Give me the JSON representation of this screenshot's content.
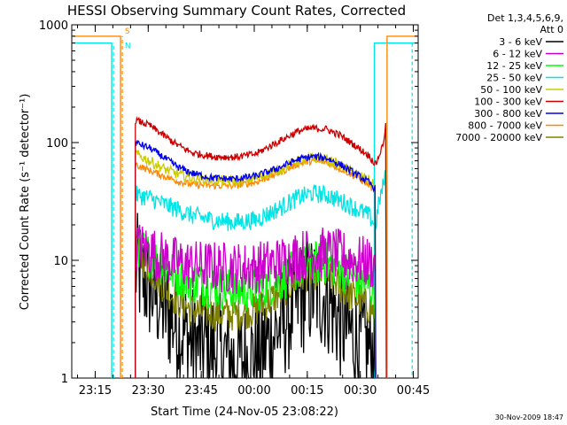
{
  "chart_data": {
    "type": "line",
    "title": "HESSI Observing Summary Count Rates, Corrected",
    "xlabel": "Start Time (24-Nov-05 23:08:22)",
    "ylabel": "Corrected Count Rate (s⁻¹ detector⁻¹)",
    "y_scale": "log",
    "ylim": [
      1,
      1000
    ],
    "y_ticks": [
      {
        "value": 1,
        "label": "1"
      },
      {
        "value": 10,
        "label": "10"
      },
      {
        "value": 100,
        "label": "100"
      },
      {
        "value": 1000,
        "label": "1000"
      }
    ],
    "x_unit": "minutes after 23:08:22",
    "xlim": [
      0,
      98
    ],
    "x_ticks": [
      {
        "value": 6.63,
        "label": "23:15"
      },
      {
        "value": 21.63,
        "label": "23:30"
      },
      {
        "value": 36.63,
        "label": "23:45"
      },
      {
        "value": 51.63,
        "label": "00:00"
      },
      {
        "value": 66.63,
        "label": "00:15"
      },
      {
        "value": 81.63,
        "label": "00:30"
      },
      {
        "value": 96.63,
        "label": "00:45"
      }
    ],
    "legend_header": [
      "Det 1,3,4,5,6,9,",
      "Att 0"
    ],
    "legend_position": "right",
    "series": [
      {
        "name": "3 - 6 keV",
        "color": "#000000",
        "x": [
          18,
          22,
          26,
          30,
          34,
          40,
          46,
          52,
          58,
          64,
          68,
          72,
          76,
          80,
          84,
          86
        ],
        "y": [
          8.5,
          6,
          4,
          2.8,
          2.0,
          1.8,
          1.4,
          1.5,
          2.5,
          4.5,
          5.5,
          5.0,
          3.0,
          2.2,
          1.8,
          1.5
        ]
      },
      {
        "name": "6 - 12 keV",
        "color": "#cc00cc",
        "x": [
          18,
          22,
          26,
          30,
          34,
          40,
          46,
          52,
          58,
          64,
          68,
          72,
          76,
          80,
          84,
          86
        ],
        "y": [
          13.5,
          12,
          10.5,
          9.5,
          9,
          8.8,
          8.6,
          8.7,
          9.5,
          11,
          11.5,
          11.5,
          11,
          10,
          9.5,
          9
        ]
      },
      {
        "name": "12 - 25 keV",
        "color": "#00ff00",
        "x": [
          18,
          22,
          26,
          30,
          34,
          40,
          46,
          52,
          58,
          64,
          68,
          72,
          76,
          80,
          84,
          86
        ],
        "y": [
          14,
          11,
          9,
          7.5,
          6.5,
          6,
          5.5,
          5.6,
          6.5,
          8.5,
          9.5,
          9.5,
          8.5,
          7,
          6,
          5.5
        ]
      },
      {
        "name": "25 - 50 keV",
        "color": "#00e5e5",
        "x": [
          18,
          22,
          26,
          30,
          34,
          40,
          46,
          52,
          58,
          64,
          68,
          72,
          76,
          80,
          84,
          86,
          87,
          89
        ],
        "y": [
          36,
          34,
          30,
          27,
          24,
          22,
          21,
          22,
          27,
          34,
          37,
          36,
          32,
          28,
          24,
          20,
          32,
          55
        ]
      },
      {
        "name": "50 - 100 keV",
        "color": "#cccc00",
        "x": [
          18,
          22,
          26,
          30,
          34,
          40,
          46,
          52,
          58,
          64,
          68,
          72,
          76,
          80,
          84,
          86
        ],
        "y": [
          80,
          70,
          60,
          54,
          50,
          48,
          47,
          50,
          58,
          70,
          74,
          72,
          64,
          55,
          48,
          42
        ]
      },
      {
        "name": "100 - 300 keV",
        "color": "#cc0000",
        "x": [
          18,
          22,
          26,
          30,
          34,
          40,
          46,
          52,
          58,
          64,
          68,
          72,
          76,
          80,
          84,
          86,
          88,
          89
        ],
        "y": [
          155,
          140,
          115,
          95,
          82,
          76,
          75,
          80,
          100,
          125,
          132,
          130,
          115,
          95,
          78,
          65,
          95,
          150
        ]
      },
      {
        "name": "300 - 800 keV",
        "color": "#0000ee",
        "x": [
          18,
          22,
          26,
          30,
          34,
          40,
          46,
          52,
          58,
          64,
          68,
          72,
          76,
          80,
          84,
          86
        ],
        "y": [
          100,
          90,
          75,
          62,
          55,
          50,
          49,
          52,
          60,
          72,
          76,
          74,
          65,
          55,
          46,
          40
        ]
      },
      {
        "name": "800 - 7000 keV",
        "color": "#ff8800",
        "x": [
          18,
          22,
          26,
          30,
          34,
          40,
          46,
          52,
          58,
          64,
          68,
          72,
          76,
          80,
          84,
          86
        ],
        "y": [
          65,
          58,
          52,
          47,
          44,
          43,
          43,
          46,
          54,
          66,
          70,
          68,
          60,
          52,
          44,
          38
        ]
      },
      {
        "name": "7000 - 20000 keV",
        "color": "#808000",
        "x": [
          18,
          22,
          26,
          30,
          34,
          40,
          46,
          52,
          58,
          64,
          68,
          72,
          76,
          80,
          84,
          86
        ],
        "y": [
          12,
          8.5,
          6,
          4.5,
          3.8,
          3.5,
          3.5,
          3.8,
          5,
          7,
          8,
          7.5,
          6,
          4.8,
          4,
          3.6
        ]
      }
    ],
    "flags": [
      {
        "label": "S",
        "color": "#ff8800",
        "y": 800
      },
      {
        "label": "N",
        "color": "#00e5e5",
        "y": 700
      }
    ],
    "footer_timestamp": "30-Nov-2009 18:47"
  }
}
